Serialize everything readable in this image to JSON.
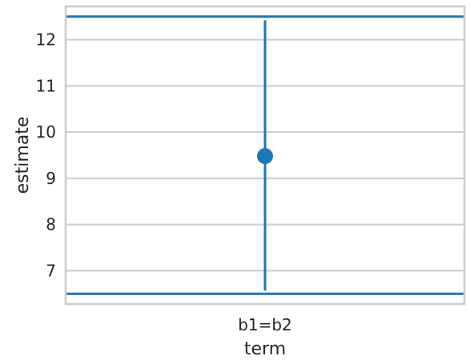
{
  "chart_data": {
    "type": "scatter",
    "categories": [
      "b1=b2"
    ],
    "xlabel": "term",
    "ylabel": "estimate",
    "ylim": [
      6.28,
      12.72
    ],
    "yticks": [
      7,
      8,
      9,
      10,
      11,
      12
    ],
    "grid": true,
    "points": [
      {
        "term": "b1=b2",
        "estimate": 9.48,
        "conf_low": 6.57,
        "conf_high": 12.42
      }
    ],
    "reference_lines": [
      6.5,
      12.5
    ],
    "colors": {
      "series": "#1f77b4",
      "grid": "#cccccc",
      "frame": "#cccccc",
      "text": "#262626"
    }
  }
}
